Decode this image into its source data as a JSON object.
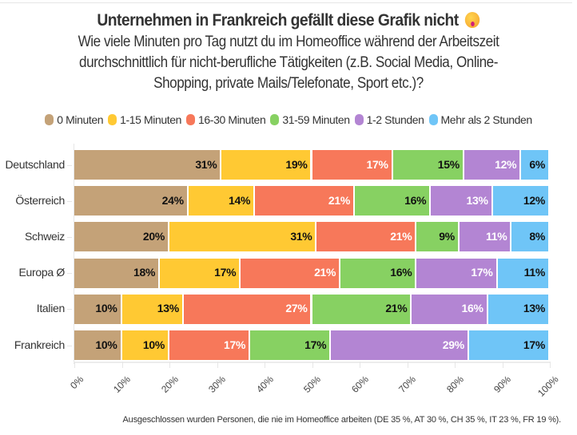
{
  "chart_data": {
    "type": "bar",
    "orientation": "horizontal",
    "stacked": true,
    "title": "Unternehmen in Frankreich gefällt diese Grafik nicht",
    "title_emoji": "face-with-peeking-eye-emoji",
    "subtitle_lines": [
      "Wie viele Minuten pro Tag nutzt du im Homeoffice während der Arbeitszeit",
      "durchschnittlich für nicht-berufliche Tätigkeiten (z.B. Social Media, Online-",
      "Shopping, private Mails/Telefonate, Sport etc.)?"
    ],
    "categories": [
      "Deutschland",
      "Österreich",
      "Schweiz",
      "Europa Ø",
      "Italien",
      "Frankreich"
    ],
    "series": [
      {
        "name": "0 Minuten",
        "color": "#c4a278",
        "label_color": "#111111",
        "values": [
          31,
          24,
          20,
          18,
          10,
          10
        ]
      },
      {
        "name": "1-15 Minuten",
        "color": "#ffc933",
        "label_color": "#111111",
        "values": [
          19,
          14,
          31,
          17,
          13,
          10
        ]
      },
      {
        "name": "16-30 Minuten",
        "color": "#f7785a",
        "label_color": "#ffffff",
        "values": [
          17,
          21,
          21,
          21,
          27,
          17
        ]
      },
      {
        "name": "31-59 Minuten",
        "color": "#87d162",
        "label_color": "#111111",
        "values": [
          15,
          16,
          9,
          16,
          21,
          17
        ]
      },
      {
        "name": "1-2 Stunden",
        "color": "#b385d3",
        "label_color": "#ffffff",
        "values": [
          12,
          13,
          11,
          17,
          16,
          29
        ]
      },
      {
        "name": "Mehr als 2 Stunden",
        "color": "#6fc5f7",
        "label_color": "#111111",
        "values": [
          6,
          12,
          8,
          11,
          13,
          17
        ]
      }
    ],
    "value_suffix": "%",
    "xlim": [
      0,
      100
    ],
    "xticks": [
      "0%",
      "10%",
      "20%",
      "30%",
      "40%",
      "50%",
      "60%",
      "70%",
      "80%",
      "90%",
      "100%"
    ],
    "xlabel": "",
    "ylabel": "",
    "legend_position": "top",
    "grid": false,
    "footnote": "Ausgeschlossen wurden Personen, die nie im Homeoffice arbeiten (DE 35 %, AT 30 %, CH 35 %, IT 23 %, FR 19 %)."
  }
}
